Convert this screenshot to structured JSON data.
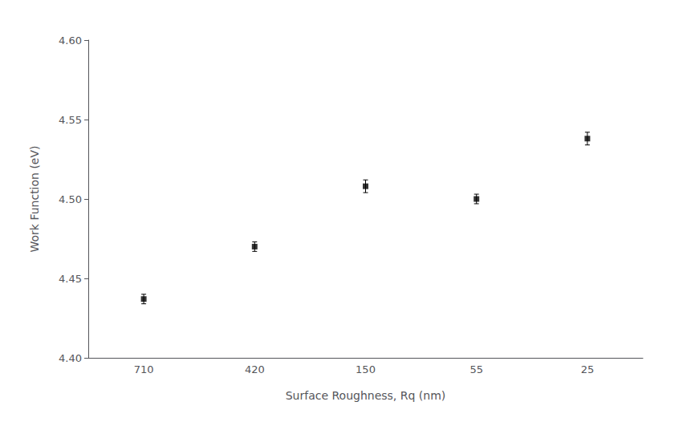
{
  "chart_data": {
    "type": "scatter",
    "xlabel": "Surface Roughness, Rq (nm)",
    "ylabel": "Work Function (eV)",
    "categories": [
      "710",
      "420",
      "150",
      "55",
      "25"
    ],
    "values": [
      4.437,
      4.47,
      4.508,
      4.5,
      4.538
    ],
    "errors": [
      0.003,
      0.003,
      0.004,
      0.003,
      0.004
    ],
    "ylim": [
      4.4,
      4.6
    ],
    "yticks": [
      {
        "value": 4.4,
        "label": "4.40"
      },
      4.45,
      {
        "value": 4.5,
        "label": "4.50"
      },
      4.55,
      {
        "value": 4.6,
        "label": "4.60"
      }
    ],
    "marker": "square",
    "color": "#000000",
    "grid": false
  }
}
